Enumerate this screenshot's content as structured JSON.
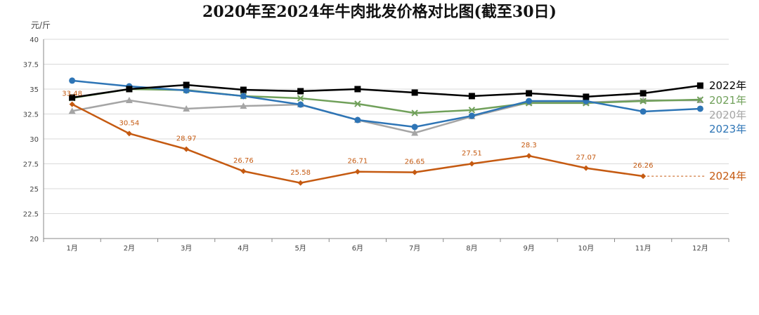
{
  "chart_data": {
    "type": "line",
    "title": "2020年至2024年牛肉批发价格对比图(截至30日)",
    "ylabel": "元/斤",
    "xlabel": "",
    "ylim": [
      20,
      40
    ],
    "yticks": [
      "20",
      "22.5",
      "25",
      "27.5",
      "30",
      "32.5",
      "35",
      "37.5",
      "40"
    ],
    "categories": [
      "1月",
      "2月",
      "3月",
      "4月",
      "5月",
      "6月",
      "7月",
      "8月",
      "9月",
      "10月",
      "11月",
      "12月"
    ],
    "legend_placement": "right (line-end labels)",
    "series": [
      {
        "name": "2020年",
        "color": "#a5a5a5",
        "marker": "triangle",
        "values": [
          32.8,
          33.87,
          33.03,
          33.3,
          33.45,
          31.9,
          30.6,
          32.25,
          33.66,
          33.66,
          33.87,
          33.87
        ]
      },
      {
        "name": "2021年",
        "color": "#70a05a",
        "marker": "x",
        "values": [
          34.1,
          35.0,
          34.9,
          34.3,
          34.08,
          33.52,
          32.6,
          32.9,
          33.6,
          33.6,
          33.8,
          33.94
        ]
      },
      {
        "name": "2023年",
        "color": "#2e75b6",
        "marker": "circle",
        "values": [
          35.85,
          35.28,
          34.86,
          34.3,
          33.45,
          31.9,
          31.2,
          32.32,
          33.8,
          33.8,
          32.75,
          33.03
        ]
      },
      {
        "name": "2022年",
        "color": "#000000",
        "marker": "square",
        "values": [
          34.15,
          35.0,
          35.42,
          34.93,
          34.79,
          35.0,
          34.65,
          34.3,
          34.58,
          34.23,
          34.58,
          35.35
        ]
      },
      {
        "name": "2024年",
        "color": "#c55a11",
        "marker": "diamond",
        "values": [
          33.48,
          30.54,
          28.97,
          26.76,
          25.58,
          26.71,
          26.65,
          27.51,
          28.3,
          27.07,
          26.26,
          null
        ],
        "data_labels": [
          "33.48",
          "30.54",
          "28.97",
          "26.76",
          "25.58",
          "26.71",
          "26.65",
          "27.51",
          "28.3",
          "27.07",
          "26.26"
        ]
      }
    ]
  }
}
